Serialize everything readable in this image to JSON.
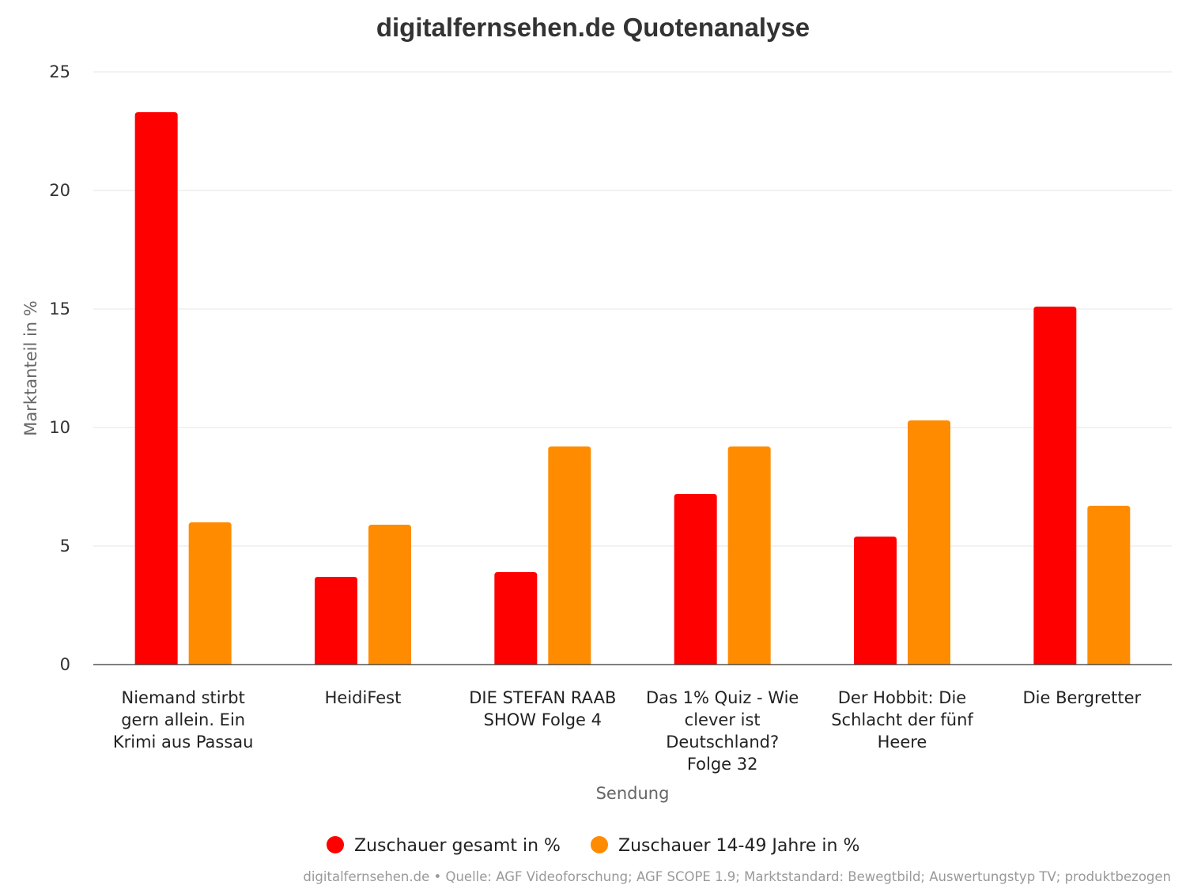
{
  "chart_data": {
    "type": "bar",
    "title": "digitalfernsehen.de Quotenanalyse",
    "xlabel": "Sendung",
    "ylabel": "Marktanteil in %",
    "ylim": [
      0,
      25
    ],
    "yticks": [
      0,
      5,
      10,
      15,
      20,
      25
    ],
    "grid": true,
    "legend_position": "bottom",
    "categories": [
      [
        "Niemand stirbt",
        "gern allein. Ein",
        "Krimi aus Passau"
      ],
      [
        "HeidiFest"
      ],
      [
        "DIE STEFAN RAAB",
        "SHOW Folge 4"
      ],
      [
        "Das 1% Quiz - Wie",
        "clever ist",
        "Deutschland?",
        "Folge 32"
      ],
      [
        "Der Hobbit: Die",
        "Schlacht der fünf",
        "Heere"
      ],
      [
        "Die Bergretter"
      ]
    ],
    "series": [
      {
        "name": "Zuschauer gesamt in %",
        "color": "#ff0000",
        "values": [
          23.3,
          3.7,
          3.9,
          7.2,
          5.4,
          15.1
        ]
      },
      {
        "name": "Zuschauer 14-49 Jahre in %",
        "color": "#ff8c00",
        "values": [
          6.0,
          5.9,
          9.2,
          9.2,
          10.3,
          6.7
        ]
      }
    ],
    "credits": "digitalfernsehen.de • Quelle: AGF Videoforschung; AGF SCOPE 1.9; Marktstandard: Bewegtbild; Auswertungstyp TV; produktbezogen"
  }
}
